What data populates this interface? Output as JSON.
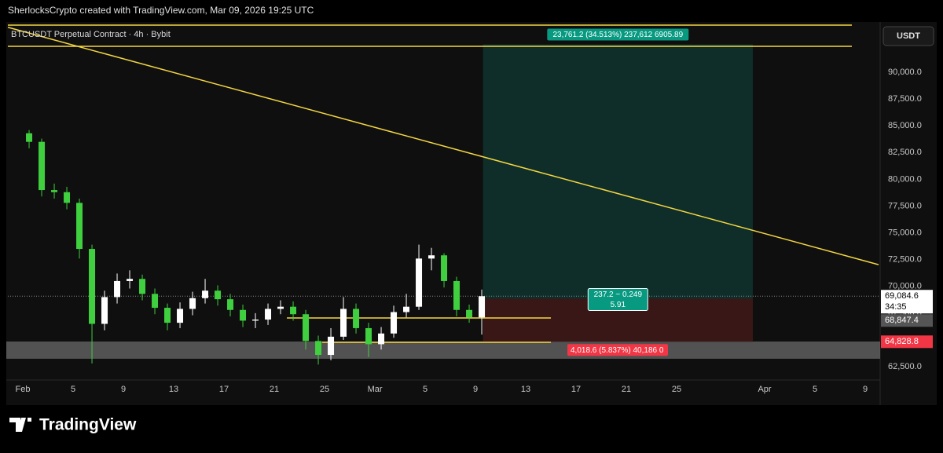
{
  "header": "SherlocksCrypto created with TradingView.com, Mar 09, 2026 19:25 UTC",
  "brand": "TradingView",
  "chart_data": {
    "type": "candlestick",
    "title": "BTCUSDT Perpetual Contract · 4h · Bybit",
    "currency": "USDT",
    "up_color": "#ffffff",
    "down_color": "#3fcf3f",
    "x": [
      0.5,
      1.5,
      2.5,
      3.5,
      4.5,
      5.5,
      6.5,
      7.5,
      8.5,
      9.5,
      10.5,
      11.5,
      12.5,
      13.5,
      14.5,
      15.5,
      16.5,
      17.5,
      18.5,
      19.5,
      20.5,
      21.5,
      22.5,
      23.5,
      24.5,
      25.5,
      26.5,
      27.5,
      28.5,
      29.5,
      30.5,
      31.5,
      32.5,
      33.5,
      34.5,
      35.5,
      36.5
    ],
    "open": [
      84300,
      83500,
      79000,
      78800,
      77800,
      73500,
      66500,
      69000,
      70500,
      70700,
      69300,
      68000,
      66600,
      67900,
      68900,
      69600,
      68800,
      67800,
      66800,
      66900,
      67900,
      68100,
      67400,
      64900,
      63600,
      65300,
      67900,
      66100,
      64600,
      65600,
      67600,
      68100,
      72600,
      72900,
      70500,
      67800,
      67100
    ],
    "high": [
      84600,
      83800,
      79600,
      79300,
      78200,
      73900,
      69600,
      71200,
      71500,
      71100,
      69800,
      68400,
      68500,
      69500,
      70700,
      70100,
      69300,
      68300,
      67500,
      68400,
      68700,
      68600,
      67800,
      65400,
      66100,
      69000,
      68400,
      66600,
      66200,
      68200,
      69300,
      73900,
      73600,
      73100,
      70900,
      68300,
      69700
    ],
    "low": [
      82900,
      78400,
      78200,
      77200,
      72600,
      62800,
      65900,
      68400,
      69800,
      68700,
      67400,
      65900,
      66100,
      67300,
      68400,
      68200,
      67200,
      66200,
      66100,
      66400,
      67400,
      66800,
      64100,
      62700,
      63100,
      65000,
      65600,
      63400,
      64100,
      65200,
      67100,
      67800,
      71500,
      69900,
      67200,
      66600,
      65500
    ],
    "close": [
      83500,
      79000,
      78800,
      77800,
      73500,
      66500,
      69000,
      70500,
      70700,
      69300,
      68000,
      66600,
      67900,
      68900,
      69600,
      68800,
      67800,
      66800,
      66900,
      67900,
      68100,
      67400,
      64900,
      63600,
      65300,
      67900,
      66100,
      64600,
      65600,
      67600,
      68100,
      72600,
      72900,
      70500,
      67800,
      67100,
      69084.6
    ],
    "xlim": [
      -1.19,
      68.06
    ],
    "ylim": [
      61330,
      94550
    ],
    "xticks": [
      {
        "value": 0,
        "label": "Feb"
      },
      {
        "value": 4,
        "label": "5"
      },
      {
        "value": 8,
        "label": "9"
      },
      {
        "value": 12,
        "label": "13"
      },
      {
        "value": 16,
        "label": "17"
      },
      {
        "value": 20,
        "label": "21"
      },
      {
        "value": 24,
        "label": "25"
      },
      {
        "value": 28,
        "label": "Mar"
      },
      {
        "value": 32,
        "label": "5"
      },
      {
        "value": 36,
        "label": "9"
      },
      {
        "value": 40,
        "label": "13"
      },
      {
        "value": 44,
        "label": "17"
      },
      {
        "value": 48,
        "label": "21"
      },
      {
        "value": 52,
        "label": "25"
      },
      {
        "value": 59,
        "label": "Apr"
      },
      {
        "value": 63,
        "label": "5"
      },
      {
        "value": 67,
        "label": "9"
      }
    ],
    "yticks": [
      {
        "value": 62500,
        "label": "62,500.0"
      },
      {
        "value": 65000,
        "label": "65,000.0"
      },
      {
        "value": 67500,
        "label": "67,500.0"
      },
      {
        "value": 70000,
        "label": "70,000.0"
      },
      {
        "value": 72500,
        "label": "72,500.0"
      },
      {
        "value": 75000,
        "label": "75,000.0"
      },
      {
        "value": 77500,
        "label": "77,500.0"
      },
      {
        "value": 80000,
        "label": "80,000.0"
      },
      {
        "value": 82500,
        "label": "82,500.0"
      },
      {
        "value": 85000,
        "label": "85,000.0"
      },
      {
        "value": 87500,
        "label": "87,500.0"
      },
      {
        "value": 90000,
        "label": "90,000.0"
      }
    ],
    "line_color": "#f5d742",
    "top_lines": [
      94400,
      92420
    ],
    "trend_line": {
      "x": [
        -1.19,
        68.06
      ],
      "y": [
        94200,
        72030
      ]
    },
    "levels": [
      {
        "x": [
          21.0,
          42.0
        ],
        "y": 67050
      },
      {
        "x": [
          23.8,
          42.0
        ],
        "y": 64780
      }
    ],
    "zone": [
      63240,
      64850
    ],
    "last_price": {
      "value": 69084.6,
      "label": "69,084.6"
    },
    "countdown": "34:35",
    "position": {
      "x": [
        36.6,
        58.06
      ],
      "entry": {
        "value": 68847.4,
        "label": "68,847.4"
      },
      "target": 92608.6,
      "stop": {
        "value": 64828.8,
        "label": "64,828.8"
      },
      "target_label": "23,761.2 (34.513%) 237,612 6905.89",
      "mid_label": [
        "237.2 ~ 0.249",
        "5.91"
      ],
      "stop_label": "4,018.6 (5.837%) 40,186 0"
    }
  }
}
